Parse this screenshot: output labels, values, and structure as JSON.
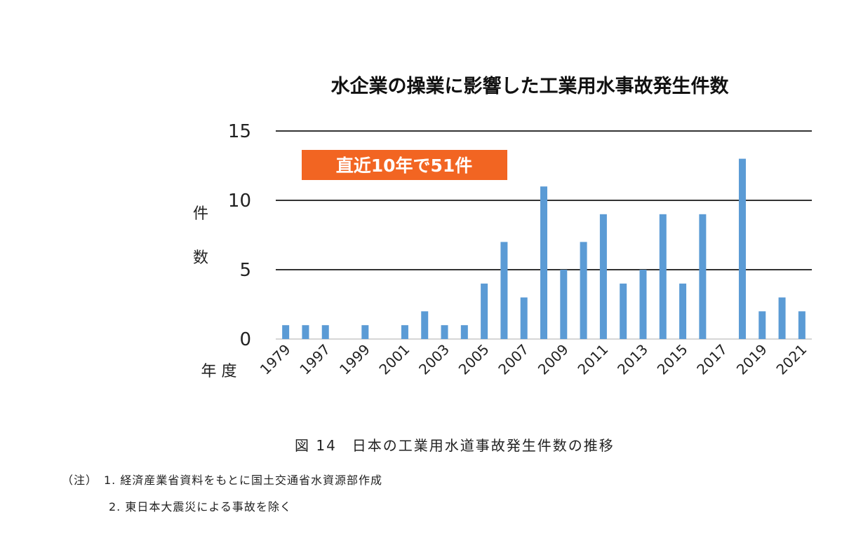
{
  "chart_data": {
    "type": "bar",
    "title": "水企業の操業に影響した工業用水事故発生件数",
    "ylabel": [
      "件",
      "数"
    ],
    "xlabel": "年 度",
    "ylim": [
      0,
      15
    ],
    "yticks": [
      0,
      5,
      10,
      15
    ],
    "grid": true,
    "bar_color": "#5b9bd5",
    "annotation": {
      "text": "直近10年で51件",
      "color": "#f26522"
    },
    "categories": [
      "1979",
      "1996",
      "1997",
      "1998",
      "1999",
      "2000",
      "2001",
      "2002",
      "2003",
      "2004",
      "2005",
      "2006",
      "2007",
      "2008",
      "2009",
      "2010",
      "2011",
      "2012",
      "2013",
      "2014",
      "2015",
      "2016",
      "2017",
      "2018",
      "2019",
      "2020",
      "2021"
    ],
    "tick_labels_shown": [
      "1979",
      "1997",
      "1999",
      "2001",
      "2003",
      "2005",
      "2007",
      "2009",
      "2011",
      "2013",
      "2015",
      "2017",
      "2019",
      "2021"
    ],
    "values": [
      1,
      1,
      1,
      0,
      1,
      0,
      1,
      2,
      1,
      1,
      4,
      7,
      3,
      11,
      5,
      7,
      9,
      4,
      5,
      9,
      4,
      9,
      0,
      13,
      2,
      3,
      2
    ]
  },
  "caption": "図 14　日本の工業用水道事故発生件数の推移",
  "notes": {
    "note1": "（注）　1. 経済産業省資料をもとに国土交通省水資源部作成",
    "note2": "2. 東日本大震災による事故を除く"
  }
}
